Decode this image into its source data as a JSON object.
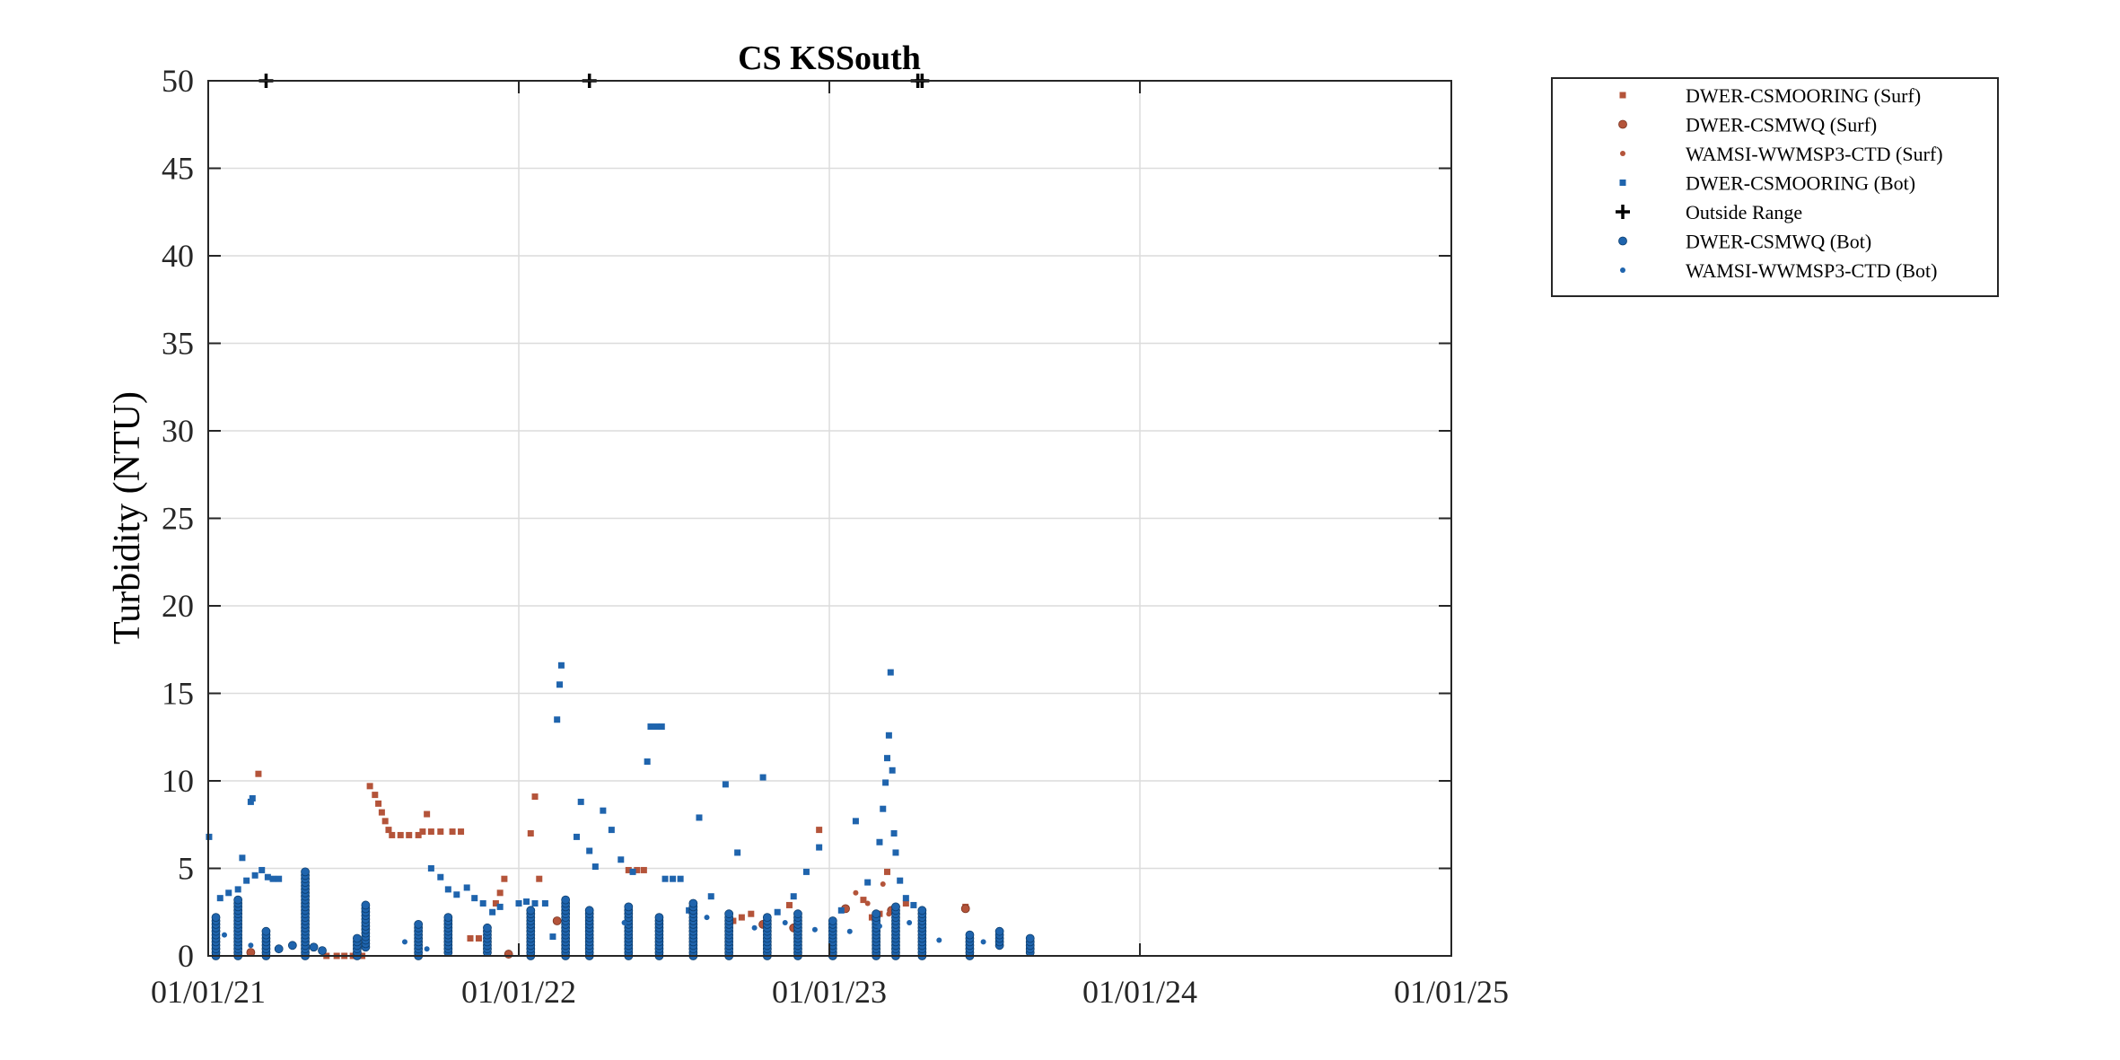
{
  "chart_data": {
    "type": "scatter",
    "title": "CS KSSouth",
    "xlabel": "",
    "ylabel": "Turbidity (NTU)",
    "x_axis_type": "date",
    "xlim": [
      "2021-01-01",
      "2025-01-01"
    ],
    "ylim": [
      0,
      50
    ],
    "xticks": [
      "2021-01-01",
      "2022-01-01",
      "2023-01-01",
      "2024-01-01",
      "2025-01-01"
    ],
    "xtick_labels": [
      "01/01/21",
      "01/01/22",
      "01/01/23",
      "01/01/24",
      "01/01/25"
    ],
    "yticks": [
      0,
      5,
      10,
      15,
      20,
      25,
      30,
      35,
      40,
      45,
      50
    ],
    "ytick_labels": [
      "0",
      "5",
      "10",
      "15",
      "20",
      "25",
      "30",
      "35",
      "40",
      "45",
      "50"
    ],
    "grid": true,
    "legend_position": "outside-top-right",
    "colors": {
      "surf": "#B4543A",
      "bot": "#1F64AD",
      "outside": "#000000"
    },
    "series": [
      {
        "name": "DWER-CSMOORING (Surf)",
        "marker": "square",
        "color": "#B4543A",
        "points": [
          [
            "2021-03-01",
            10.4
          ],
          [
            "2021-07-10",
            9.7
          ],
          [
            "2021-07-16",
            9.2
          ],
          [
            "2021-07-20",
            8.7
          ],
          [
            "2021-07-24",
            8.2
          ],
          [
            "2021-07-28",
            7.7
          ],
          [
            "2021-08-01",
            7.2
          ],
          [
            "2021-08-05",
            6.9
          ],
          [
            "2021-08-15",
            6.9
          ],
          [
            "2021-08-25",
            6.9
          ],
          [
            "2021-09-05",
            6.9
          ],
          [
            "2021-09-10",
            7.1
          ],
          [
            "2021-09-15",
            8.1
          ],
          [
            "2021-09-20",
            7.1
          ],
          [
            "2021-10-01",
            7.1
          ],
          [
            "2021-10-15",
            7.1
          ],
          [
            "2021-10-25",
            7.1
          ],
          [
            "2021-11-05",
            1.0
          ],
          [
            "2021-11-15",
            1.0
          ],
          [
            "2021-11-25",
            1.0
          ],
          [
            "2021-12-05",
            3.0
          ],
          [
            "2021-12-10",
            3.6
          ],
          [
            "2021-12-15",
            4.4
          ],
          [
            "2022-01-20",
            9.1
          ],
          [
            "2022-01-15",
            7.0
          ],
          [
            "2022-01-25",
            4.4
          ],
          [
            "2022-05-10",
            4.9
          ],
          [
            "2022-05-20",
            4.9
          ],
          [
            "2022-05-28",
            4.9
          ],
          [
            "2022-09-10",
            2.0
          ],
          [
            "2022-09-20",
            2.2
          ],
          [
            "2022-10-01",
            2.4
          ],
          [
            "2022-11-15",
            2.9
          ],
          [
            "2022-12-20",
            7.2
          ],
          [
            "2023-02-10",
            3.2
          ],
          [
            "2023-02-20",
            2.2
          ],
          [
            "2023-03-01",
            2.4
          ],
          [
            "2023-03-10",
            4.8
          ],
          [
            "2023-03-20",
            2.6
          ],
          [
            "2023-04-01",
            3.0
          ],
          [
            "2023-06-10",
            2.8
          ],
          [
            "2021-05-20",
            0.0
          ],
          [
            "2021-06-01",
            0.0
          ],
          [
            "2021-06-10",
            0.0
          ],
          [
            "2021-06-20",
            0.0
          ],
          [
            "2021-07-01",
            0.0
          ]
        ]
      },
      {
        "name": "DWER-CSMWQ (Surf)",
        "marker": "circle",
        "color": "#B4543A",
        "points": [
          [
            "2021-02-20",
            0.2
          ],
          [
            "2021-12-20",
            0.1
          ],
          [
            "2022-02-15",
            2.0
          ],
          [
            "2022-10-15",
            1.8
          ],
          [
            "2022-11-20",
            1.6
          ],
          [
            "2023-01-20",
            2.7
          ],
          [
            "2023-03-15",
            2.6
          ],
          [
            "2023-06-10",
            2.7
          ]
        ]
      },
      {
        "name": "WAMSI-WWMSP3-CTD (Surf)",
        "marker": "dot",
        "color": "#B4543A",
        "points": [
          [
            "2023-02-01",
            3.6
          ],
          [
            "2023-02-15",
            3.0
          ],
          [
            "2023-03-05",
            4.1
          ],
          [
            "2023-03-12",
            2.4
          ],
          [
            "2023-03-22",
            2.8
          ]
        ]
      },
      {
        "name": "DWER-CSMOORING (Bot)",
        "marker": "square",
        "color": "#1F64AD",
        "points": [
          [
            "2021-01-02",
            6.8
          ],
          [
            "2021-01-15",
            3.3
          ],
          [
            "2021-01-25",
            3.6
          ],
          [
            "2021-02-05",
            3.8
          ],
          [
            "2021-02-15",
            4.3
          ],
          [
            "2021-02-25",
            4.6
          ],
          [
            "2021-02-10",
            5.6
          ],
          [
            "2021-03-05",
            4.9
          ],
          [
            "2021-03-12",
            4.5
          ],
          [
            "2021-03-18",
            4.4
          ],
          [
            "2021-03-25",
            4.4
          ],
          [
            "2021-02-20",
            8.8
          ],
          [
            "2021-02-22",
            9.0
          ],
          [
            "2021-09-20",
            5.0
          ],
          [
            "2021-10-01",
            4.5
          ],
          [
            "2021-10-10",
            3.8
          ],
          [
            "2021-10-20",
            3.5
          ],
          [
            "2021-11-01",
            3.9
          ],
          [
            "2021-11-10",
            3.3
          ],
          [
            "2021-11-20",
            3.0
          ],
          [
            "2021-12-01",
            2.5
          ],
          [
            "2021-12-10",
            2.8
          ],
          [
            "2022-01-01",
            3.0
          ],
          [
            "2022-01-10",
            3.1
          ],
          [
            "2022-01-20",
            3.0
          ],
          [
            "2022-02-01",
            3.0
          ],
          [
            "2022-02-10",
            1.1
          ],
          [
            "2022-02-15",
            13.5
          ],
          [
            "2022-02-18",
            15.5
          ],
          [
            "2022-02-20",
            16.6
          ],
          [
            "2022-03-10",
            6.8
          ],
          [
            "2022-03-15",
            8.8
          ],
          [
            "2022-03-25",
            6.0
          ],
          [
            "2022-04-01",
            5.1
          ],
          [
            "2022-04-10",
            8.3
          ],
          [
            "2022-04-20",
            7.2
          ],
          [
            "2022-05-01",
            5.5
          ],
          [
            "2022-05-15",
            4.8
          ],
          [
            "2022-06-01",
            11.1
          ],
          [
            "2022-06-05",
            13.1
          ],
          [
            "2022-06-12",
            13.1
          ],
          [
            "2022-06-18",
            13.1
          ],
          [
            "2022-06-22",
            4.4
          ],
          [
            "2022-07-01",
            4.4
          ],
          [
            "2022-07-10",
            4.4
          ],
          [
            "2022-07-20",
            2.6
          ],
          [
            "2022-08-01",
            7.9
          ],
          [
            "2022-08-15",
            3.4
          ],
          [
            "2022-09-01",
            9.8
          ],
          [
            "2022-09-15",
            5.9
          ],
          [
            "2022-10-15",
            10.2
          ],
          [
            "2022-11-01",
            2.5
          ],
          [
            "2022-11-20",
            3.4
          ],
          [
            "2022-12-05",
            4.8
          ],
          [
            "2022-12-20",
            6.2
          ],
          [
            "2023-01-15",
            2.6
          ],
          [
            "2023-02-01",
            7.7
          ],
          [
            "2023-02-15",
            4.2
          ],
          [
            "2023-03-01",
            6.5
          ],
          [
            "2023-03-05",
            8.4
          ],
          [
            "2023-03-08",
            9.9
          ],
          [
            "2023-03-10",
            11.3
          ],
          [
            "2023-03-12",
            12.6
          ],
          [
            "2023-03-14",
            16.2
          ],
          [
            "2023-03-16",
            10.6
          ],
          [
            "2023-03-18",
            7.0
          ],
          [
            "2023-03-20",
            5.9
          ],
          [
            "2023-03-25",
            4.3
          ],
          [
            "2023-04-01",
            3.3
          ],
          [
            "2023-04-10",
            2.9
          ]
        ]
      },
      {
        "name": "Outside Range",
        "marker": "plus",
        "color": "#000000",
        "points": [
          [
            "2021-03-10",
            50
          ],
          [
            "2022-03-25",
            50
          ],
          [
            "2023-04-15",
            50
          ],
          [
            "2023-04-20",
            50
          ]
        ]
      },
      {
        "name": "DWER-CSMWQ (Bot)",
        "marker": "circle",
        "color": "#1F64AD",
        "profiles": [
          [
            "2021-01-10",
            0.0,
            2.2
          ],
          [
            "2021-02-05",
            0.0,
            3.3
          ],
          [
            "2021-03-10",
            0.0,
            1.5
          ],
          [
            "2021-04-25",
            0.0,
            4.9
          ],
          [
            "2021-06-25",
            0.0,
            1.0
          ],
          [
            "2021-07-05",
            0.5,
            2.9
          ],
          [
            "2021-09-05",
            0.0,
            1.8
          ],
          [
            "2021-10-10",
            0.2,
            2.2
          ],
          [
            "2021-11-25",
            0.2,
            1.7
          ],
          [
            "2022-01-15",
            0.0,
            2.6
          ],
          [
            "2022-02-25",
            0.0,
            3.2
          ],
          [
            "2022-03-25",
            0.0,
            2.7
          ],
          [
            "2022-05-10",
            0.0,
            2.8
          ],
          [
            "2022-06-15",
            0.0,
            2.2
          ],
          [
            "2022-07-25",
            0.0,
            3.0
          ],
          [
            "2022-09-05",
            0.0,
            2.5
          ],
          [
            "2022-10-20",
            0.0,
            2.3
          ],
          [
            "2022-11-25",
            0.0,
            2.4
          ],
          [
            "2023-01-05",
            0.0,
            2.1
          ],
          [
            "2023-02-25",
            0.0,
            2.4
          ],
          [
            "2023-03-20",
            0.0,
            2.9
          ],
          [
            "2023-04-20",
            0.0,
            2.7
          ],
          [
            "2023-06-15",
            0.0,
            1.3
          ],
          [
            "2023-07-20",
            0.6,
            1.5
          ],
          [
            "2023-08-25",
            0.2,
            1.1
          ]
        ],
        "points": [
          [
            "2021-03-25",
            0.4
          ],
          [
            "2021-04-10",
            0.6
          ],
          [
            "2021-05-05",
            0.5
          ],
          [
            "2021-05-15",
            0.3
          ]
        ]
      },
      {
        "name": "WAMSI-WWMSP3-CTD (Bot)",
        "marker": "dot",
        "color": "#1F64AD",
        "points": [
          [
            "2021-01-20",
            1.2
          ],
          [
            "2021-02-20",
            0.6
          ],
          [
            "2021-08-20",
            0.8
          ],
          [
            "2021-09-15",
            0.4
          ],
          [
            "2022-05-05",
            1.9
          ],
          [
            "2022-08-10",
            2.2
          ],
          [
            "2022-10-05",
            1.6
          ],
          [
            "2022-11-10",
            1.9
          ],
          [
            "2022-12-15",
            1.5
          ],
          [
            "2023-01-25",
            1.4
          ],
          [
            "2023-03-01",
            1.7
          ],
          [
            "2023-04-05",
            1.9
          ],
          [
            "2023-05-10",
            0.9
          ],
          [
            "2023-07-01",
            0.8
          ]
        ]
      }
    ]
  }
}
